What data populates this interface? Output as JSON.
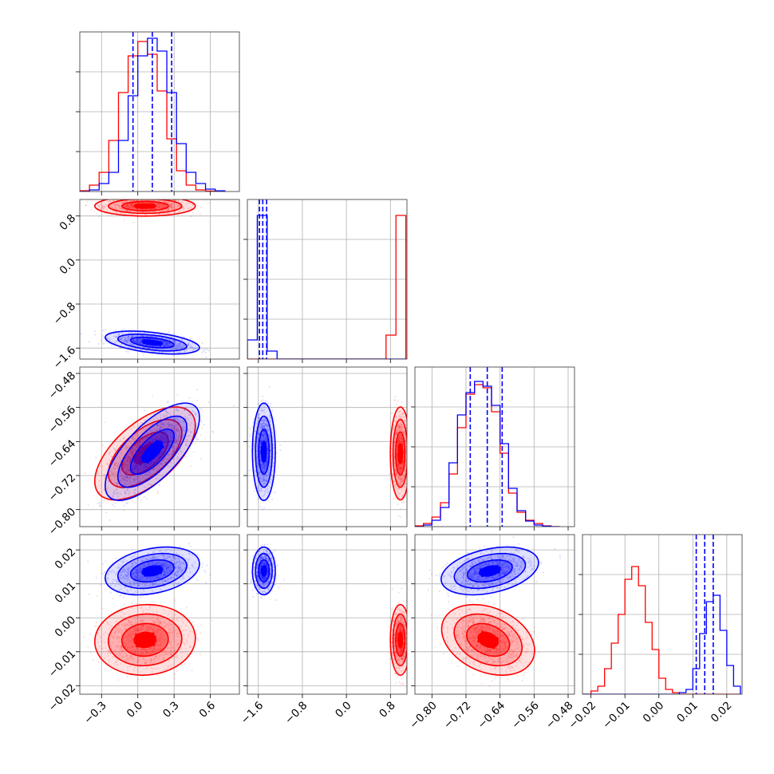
{
  "chart_data": {
    "type": "corner",
    "title": "",
    "grid": true,
    "series": [
      {
        "color": "#ff0000",
        "mean": [
          0.06,
          0.98,
          -0.668,
          -0.0065
        ],
        "std": [
          0.16,
          0.07,
          0.042,
          0.004
        ],
        "corr": {
          "0-2": 0.6,
          "2-3": -0.3,
          "0-3": 0.05
        }
      },
      {
        "color": "#0000ff",
        "mean": [
          0.12,
          -1.5,
          -0.664,
          0.0138
        ],
        "std": [
          0.15,
          0.08,
          0.044,
          0.0027
        ],
        "corr": {
          "0-1": -0.45,
          "0-2": 0.7,
          "2-3": 0.35,
          "0-3": 0.3
        }
      }
    ],
    "quantile_lines": {
      "color": "#0000ff",
      "param0": [
        -0.04,
        0.12,
        0.28
      ],
      "param1": [
        -1.58,
        -1.52,
        -1.45
      ],
      "param2": [
        -0.71,
        -0.67,
        -0.635
      ],
      "param3": [
        0.011,
        0.0135,
        0.016
      ]
    },
    "histograms": {
      "param0": {
        "bins": [
          -0.48,
          -0.4,
          -0.32,
          -0.24,
          -0.16,
          -0.08,
          0.0,
          0.08,
          0.16,
          0.24,
          0.32,
          0.4,
          0.48,
          0.56,
          0.64,
          0.72
        ],
        "red": [
          0.005,
          0.04,
          0.12,
          0.32,
          0.62,
          0.85,
          0.94,
          0.86,
          0.63,
          0.33,
          0.13,
          0.04,
          0.01,
          0.003,
          0.0
        ],
        "blue": [
          0.0,
          0.01,
          0.05,
          0.12,
          0.32,
          0.6,
          0.85,
          0.96,
          0.88,
          0.62,
          0.3,
          0.12,
          0.05,
          0.015,
          0.004
        ]
      },
      "param1": {
        "bins": [
          -1.8,
          -1.62,
          -1.44,
          -1.26,
          -1.08,
          -0.9,
          -0.72,
          -0.54,
          -0.36,
          -0.18,
          0.0,
          0.18,
          0.36,
          0.54,
          0.72,
          0.9,
          1.08
        ],
        "red": [
          0,
          0,
          0,
          0,
          0,
          0,
          0,
          0,
          0,
          0,
          0,
          0,
          0,
          0,
          0.15,
          0.9
        ],
        "blue": [
          0.12,
          0.9,
          0.05,
          0,
          0,
          0,
          0,
          0,
          0,
          0,
          0,
          0,
          0,
          0,
          0,
          0
        ]
      },
      "param2": {
        "bins": [
          -0.84,
          -0.82,
          -0.8,
          -0.78,
          -0.76,
          -0.74,
          -0.72,
          -0.7,
          -0.68,
          -0.66,
          -0.64,
          -0.62,
          -0.6,
          -0.58,
          -0.56,
          -0.54,
          -0.52,
          -0.5
        ],
        "red": [
          0.005,
          0.02,
          0.06,
          0.15,
          0.33,
          0.62,
          0.83,
          0.89,
          0.87,
          0.72,
          0.46,
          0.21,
          0.09,
          0.04,
          0.02,
          0.005,
          0.0
        ],
        "blue": [
          0.0,
          0.01,
          0.04,
          0.12,
          0.4,
          0.7,
          0.84,
          0.91,
          0.88,
          0.76,
          0.52,
          0.24,
          0.1,
          0.035,
          0.01,
          0.003,
          0.0
        ]
      },
      "param3": {
        "bins": [
          -0.024,
          -0.022,
          -0.02,
          -0.018,
          -0.016,
          -0.014,
          -0.012,
          -0.01,
          -0.008,
          -0.006,
          -0.004,
          -0.002,
          0.0,
          0.002,
          0.004,
          0.006,
          0.008,
          0.01,
          0.012,
          0.014,
          0.016,
          0.018,
          0.02,
          0.022,
          0.024
        ],
        "red": [
          0,
          0,
          0.02,
          0.05,
          0.16,
          0.32,
          0.5,
          0.72,
          0.8,
          0.68,
          0.45,
          0.28,
          0.1,
          0.03,
          0.01,
          0,
          0,
          0,
          0,
          0,
          0,
          0,
          0,
          0
        ],
        "blue": [
          0,
          0,
          0,
          0,
          0,
          0,
          0,
          0,
          0,
          0,
          0,
          0,
          0,
          0,
          0,
          0.01,
          0.03,
          0.16,
          0.38,
          0.58,
          0.62,
          0.4,
          0.18,
          0.05
        ]
      }
    },
    "axes": [
      {
        "param": 0,
        "range": [
          -0.48,
          0.84
        ],
        "ticks": [
          -0.3,
          0.0,
          0.3,
          0.6
        ],
        "tick_labels": [
          "−0.3",
          "0.0",
          "0.3",
          "0.6"
        ]
      },
      {
        "param": 1,
        "range": [
          -1.8,
          1.1
        ],
        "ticks": [
          -1.6,
          -0.8,
          0.0,
          0.8
        ],
        "tick_labels": [
          "−1.6",
          "−0.8",
          "0.0",
          "0.8"
        ]
      },
      {
        "param": 2,
        "range": [
          -0.84,
          -0.465
        ],
        "ticks": [
          -0.8,
          -0.72,
          -0.64,
          -0.56,
          -0.48
        ],
        "tick_labels": [
          "−0.80",
          "−0.72",
          "−0.64",
          "−0.56",
          "−0.48"
        ]
      },
      {
        "param": 3,
        "range": [
          -0.0225,
          0.0245
        ],
        "ticks": [
          -0.02,
          -0.01,
          0.0,
          0.01,
          0.02
        ],
        "tick_labels": [
          "−0.02",
          "−0.01",
          "0.00",
          "0.01",
          "0.02"
        ]
      }
    ],
    "hist_y_range": [
      0,
      1.0
    ],
    "hist_y_ticks": [
      0.25,
      0.5,
      0.75
    ]
  }
}
